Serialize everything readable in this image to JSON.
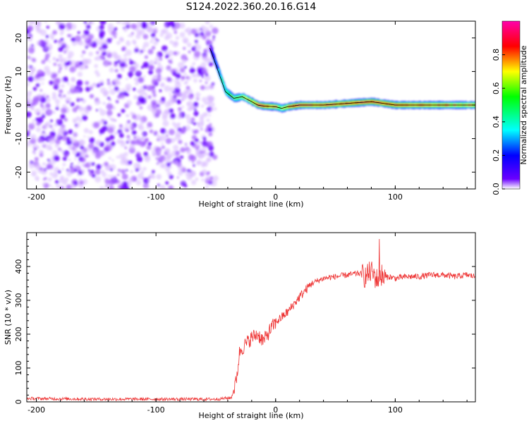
{
  "title": "S124.2022.360.20.16.G14",
  "chart_data": [
    {
      "type": "heatmap",
      "xlabel": "Height of straight line (km)",
      "ylabel": "Frequency (Hz)",
      "xlim": [
        -208,
        167
      ],
      "ylim": [
        -25,
        25
      ],
      "xticks": [
        -200,
        -100,
        0,
        100
      ],
      "yticks": [
        -20,
        -10,
        0,
        10,
        20
      ],
      "colorbar": {
        "label": "Normalized spectral amplitude",
        "range": [
          0.0,
          1.0
        ],
        "ticks": [
          0.0,
          0.2,
          0.4,
          0.6,
          0.8
        ],
        "colors": [
          "#ffffff",
          "#6a00ff",
          "#0000ff",
          "#00ffff",
          "#00ff00",
          "#ffff00",
          "#ff0000",
          "#ff00aa"
        ]
      },
      "noise_region": {
        "x_from": -208,
        "x_to": -50,
        "f_from": -25,
        "f_to": 25,
        "level": 0.05
      },
      "signal_track": {
        "x": [
          -55,
          -48,
          -42,
          -35,
          -28,
          -20,
          -15,
          -10,
          0,
          5,
          10,
          20,
          40,
          60,
          80,
          100,
          120,
          140,
          167
        ],
        "freq": [
          17,
          10,
          4,
          2,
          2.5,
          1,
          0,
          -0.3,
          -0.5,
          -1,
          -0.5,
          0,
          0,
          0.5,
          1,
          0,
          0,
          0,
          0
        ],
        "amplitude": [
          0.15,
          0.3,
          0.45,
          0.55,
          0.6,
          0.7,
          0.85,
          0.8,
          0.7,
          0.6,
          0.75,
          0.9,
          0.8,
          0.85,
          0.9,
          0.85,
          0.8,
          0.75,
          0.7
        ]
      },
      "trace_color": "#000000"
    },
    {
      "type": "line",
      "xlabel": "Height of straight line (km)",
      "ylabel": "SNR (10 * v/v)",
      "xlim": [
        -208,
        167
      ],
      "ylim": [
        0,
        500
      ],
      "xticks": [
        -200,
        -100,
        0,
        100
      ],
      "yticks": [
        0,
        100,
        200,
        300,
        400
      ],
      "color": "#ee3333",
      "series": [
        {
          "x": [
            -208,
            -150,
            -100,
            -50,
            -37,
            -33,
            -30,
            -25,
            -20,
            -15,
            -10,
            -5,
            0,
            10,
            20,
            30,
            40,
            50,
            60,
            70,
            75,
            80,
            85,
            88,
            90,
            95,
            100,
            110,
            120,
            130,
            140,
            150,
            160,
            167
          ],
          "y": [
            10,
            8,
            8,
            8,
            12,
            60,
            150,
            170,
            190,
            200,
            180,
            210,
            235,
            265,
            310,
            350,
            365,
            370,
            375,
            380,
            370,
            385,
            360,
            380,
            365,
            370,
            365,
            370,
            370,
            375,
            375,
            370,
            375,
            370
          ]
        }
      ]
    }
  ]
}
